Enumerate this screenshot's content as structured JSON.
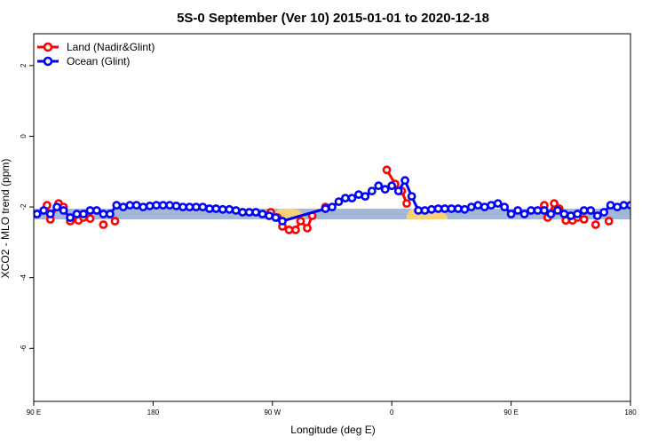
{
  "chart_data": {
    "type": "line",
    "title": "5S-0 September (Ver 10)   2015-01-01 to 2020-12-18",
    "xlabel": "Longitude (deg E)",
    "ylabel": "XCO2 - MLO trend (ppm)",
    "xlim": [
      90,
      450
    ],
    "ylim": [
      -7.5,
      2.9
    ],
    "x_ticks": [
      {
        "value": 90,
        "label": "90 E"
      },
      {
        "value": 162,
        "label": "180"
      },
      {
        "value": 234,
        "label": "90 W"
      },
      {
        "value": 306,
        "label": "0"
      },
      {
        "value": 378,
        "label": "90 E"
      },
      {
        "value": 450,
        "label": "180"
      }
    ],
    "y_ticks": [
      {
        "value": 2,
        "label": "2"
      },
      {
        "value": 0,
        "label": "0"
      },
      {
        "value": -2,
        "label": "-2"
      },
      {
        "value": -4,
        "label": "-4"
      },
      {
        "value": -6,
        "label": "-6"
      }
    ],
    "legend": {
      "position": "top-left"
    },
    "grid": false,
    "background_band": {
      "ymin": -2.35,
      "ymax": -2.05,
      "color": "#a3b8d8"
    },
    "land_bands": [
      {
        "xmin": 234,
        "xmax": 252,
        "color": "#f5d17a"
      },
      {
        "xmin": 314,
        "xmax": 338,
        "color": "#f5d17a"
      }
    ],
    "series": [
      {
        "name": "Land (Nadir&Glint)",
        "color": "#ff0000",
        "segments": [
          [
            [
              98,
              -1.95
            ],
            [
              100,
              -2.35
            ],
            [
              105,
              -1.9
            ],
            [
              108,
              -2.0
            ]
          ],
          [
            [
              112,
              -2.4
            ],
            [
              117,
              -2.38
            ],
            [
              120,
              -2.3
            ],
            [
              124,
              -2.33
            ]
          ],
          [
            [
              132,
              -2.5
            ]
          ],
          [
            [
              139,
              -2.4
            ]
          ],
          [
            [
              233,
              -2.15
            ],
            [
              237,
              -2.3
            ],
            [
              240,
              -2.55
            ],
            [
              244,
              -2.65
            ],
            [
              248,
              -2.65
            ],
            [
              251,
              -2.4
            ],
            [
              255,
              -2.6
            ],
            [
              258,
              -2.25
            ]
          ],
          [
            [
              266,
              -2.0
            ]
          ],
          [
            [
              303,
              -0.95
            ],
            [
              308,
              -1.35
            ],
            [
              312,
              -1.55
            ],
            [
              315,
              -1.9
            ]
          ],
          [
            [
              398,
              -1.95
            ],
            [
              400,
              -2.3
            ],
            [
              404,
              -1.9
            ],
            [
              407,
              -2.05
            ]
          ],
          [
            [
              411,
              -2.38
            ],
            [
              415,
              -2.38
            ],
            [
              418,
              -2.3
            ],
            [
              422,
              -2.35
            ]
          ],
          [
            [
              429,
              -2.5
            ]
          ],
          [
            [
              437,
              -2.4
            ]
          ]
        ]
      },
      {
        "name": "Ocean (Glint)",
        "color": "#0000ff",
        "points": [
          [
            92,
            -2.2
          ],
          [
            96,
            -2.1
          ],
          [
            100,
            -2.2
          ],
          [
            104,
            -2.0
          ],
          [
            108,
            -2.1
          ],
          [
            112,
            -2.3
          ],
          [
            116,
            -2.2
          ],
          [
            120,
            -2.2
          ],
          [
            124,
            -2.1
          ],
          [
            128,
            -2.1
          ],
          [
            132,
            -2.2
          ],
          [
            136,
            -2.2
          ],
          [
            140,
            -1.95
          ],
          [
            144,
            -2.0
          ],
          [
            148,
            -1.95
          ],
          [
            152,
            -1.95
          ],
          [
            156,
            -2.0
          ],
          [
            160,
            -1.97
          ],
          [
            164,
            -1.95
          ],
          [
            168,
            -1.95
          ],
          [
            172,
            -1.95
          ],
          [
            176,
            -1.97
          ],
          [
            180,
            -2.0
          ],
          [
            184,
            -2.0
          ],
          [
            188,
            -2.0
          ],
          [
            192,
            -2.0
          ],
          [
            196,
            -2.05
          ],
          [
            200,
            -2.05
          ],
          [
            204,
            -2.07
          ],
          [
            208,
            -2.07
          ],
          [
            212,
            -2.1
          ],
          [
            216,
            -2.15
          ],
          [
            220,
            -2.15
          ],
          [
            224,
            -2.15
          ],
          [
            228,
            -2.2
          ],
          [
            232,
            -2.25
          ],
          [
            236,
            -2.3
          ],
          [
            240,
            -2.4
          ],
          [
            266,
            -2.05
          ],
          [
            270,
            -2.0
          ],
          [
            274,
            -1.85
          ],
          [
            278,
            -1.75
          ],
          [
            282,
            -1.75
          ],
          [
            286,
            -1.65
          ],
          [
            290,
            -1.7
          ],
          [
            294,
            -1.55
          ],
          [
            298,
            -1.4
          ],
          [
            302,
            -1.5
          ],
          [
            306,
            -1.4
          ],
          [
            310,
            -1.55
          ],
          [
            314,
            -1.25
          ],
          [
            318,
            -1.7
          ],
          [
            322,
            -2.1
          ],
          [
            326,
            -2.1
          ],
          [
            330,
            -2.07
          ],
          [
            334,
            -2.05
          ],
          [
            338,
            -2.05
          ],
          [
            342,
            -2.05
          ],
          [
            346,
            -2.05
          ],
          [
            350,
            -2.07
          ],
          [
            354,
            -2.0
          ],
          [
            358,
            -1.95
          ],
          [
            362,
            -2.0
          ],
          [
            366,
            -1.95
          ],
          [
            370,
            -1.9
          ],
          [
            374,
            -2.0
          ],
          [
            378,
            -2.2
          ],
          [
            382,
            -2.1
          ],
          [
            386,
            -2.2
          ],
          [
            390,
            -2.1
          ],
          [
            394,
            -2.1
          ],
          [
            398,
            -2.1
          ],
          [
            402,
            -2.2
          ],
          [
            406,
            -2.1
          ],
          [
            410,
            -2.2
          ],
          [
            414,
            -2.25
          ],
          [
            418,
            -2.2
          ],
          [
            422,
            -2.1
          ],
          [
            426,
            -2.1
          ],
          [
            430,
            -2.25
          ],
          [
            434,
            -2.15
          ],
          [
            438,
            -1.95
          ],
          [
            442,
            -2.0
          ],
          [
            446,
            -1.95
          ],
          [
            450,
            -1.95
          ],
          [
            454,
            -2.0
          ],
          [
            458,
            -1.95
          ]
        ]
      }
    ]
  }
}
